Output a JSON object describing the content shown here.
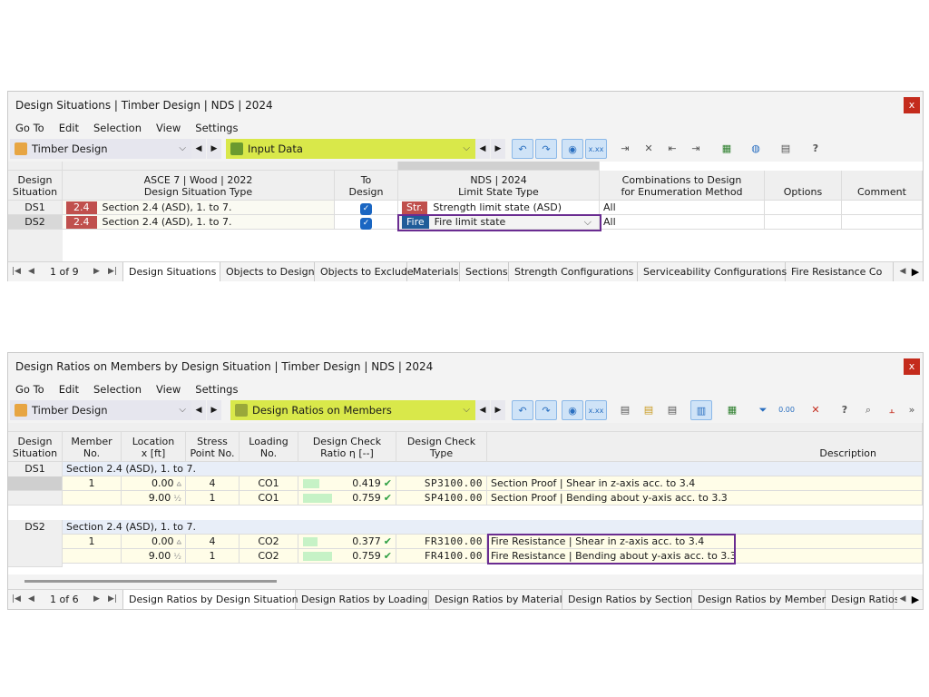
{
  "panel1": {
    "title": "Design Situations | Timber Design | NDS | 2024",
    "menu": [
      "Go To",
      "Edit",
      "Selection",
      "View",
      "Settings"
    ],
    "module": "Timber Design",
    "view": "Input Data",
    "headers": {
      "ds": "Design\nSituation",
      "type_group": "ASCE 7 | Wood | 2022",
      "type": "Design Situation Type",
      "to_design": "To\nDesign",
      "nds_group": "NDS | 2024",
      "limit": "Limit State Type",
      "combos": "Combinations to Design\nfor Enumeration Method",
      "options": "Options",
      "comment": "Comment"
    },
    "rows": [
      {
        "ds": "DS1",
        "type_badge": "2.4",
        "type": "Section 2.4 (ASD), 1. to 7.",
        "to_design": true,
        "limit_badge": "Str.",
        "limit": "Strength limit state (ASD)",
        "combos": "All"
      },
      {
        "ds": "DS2",
        "type_badge": "2.4",
        "type": "Section 2.4 (ASD), 1. to 7.",
        "to_design": true,
        "limit_badge": "Fire",
        "limit": "Fire limit state",
        "combos": "All"
      }
    ],
    "pager": "1 of 9",
    "tabs": [
      "Design Situations",
      "Objects to Design",
      "Objects to Exclude",
      "Materials",
      "Sections",
      "Strength Configurations",
      "Serviceability Configurations",
      "Fire Resistance Co"
    ]
  },
  "panel2": {
    "title": "Design Ratios on Members by Design Situation | Timber Design | NDS | 2024",
    "menu": [
      "Go To",
      "Edit",
      "Selection",
      "View",
      "Settings"
    ],
    "module": "Timber Design",
    "view": "Design Ratios on Members",
    "headers": {
      "ds": "Design\nSituation",
      "member": "Member\nNo.",
      "location": "Location\nx [ft]",
      "stress": "Stress\nPoint No.",
      "loading": "Loading\nNo.",
      "ratio": "Design Check\nRatio η [--]",
      "type": "Design Check\nType",
      "desc": "Description"
    },
    "groups": [
      {
        "ds": "DS1",
        "label": "Section 2.4 (ASD), 1. to 7.",
        "rows": [
          {
            "member": "1",
            "location": "0.00",
            "loc_icon": "max-icon",
            "stress": "4",
            "loading": "CO1",
            "ratio": 0.419,
            "ratio_text": "0.419",
            "type": "SP3100.00",
            "desc": "Section Proof | Shear in z-axis acc. to 3.4"
          },
          {
            "member": "",
            "location": "9.00",
            "loc_icon": "half-icon",
            "stress": "1",
            "loading": "CO1",
            "ratio": 0.759,
            "ratio_text": "0.759",
            "type": "SP4100.00",
            "desc": "Section Proof | Bending about y-axis acc. to 3.3"
          }
        ]
      },
      {
        "ds": "DS2",
        "label": "Section 2.4 (ASD), 1. to 7.",
        "rows": [
          {
            "member": "1",
            "location": "0.00",
            "loc_icon": "max-icon",
            "stress": "4",
            "loading": "CO2",
            "ratio": 0.377,
            "ratio_text": "0.377",
            "type": "FR3100.00",
            "desc": "Fire Resistance | Shear in z-axis acc. to 3.4"
          },
          {
            "member": "",
            "location": "9.00",
            "loc_icon": "half-icon",
            "stress": "1",
            "loading": "CO2",
            "ratio": 0.759,
            "ratio_text": "0.759",
            "type": "FR4100.00",
            "desc": "Fire Resistance | Bending about y-axis acc. to 3.3"
          }
        ]
      }
    ],
    "pager": "1 of 6",
    "tabs": [
      "Design Ratios by Design Situation",
      "Design Ratios by Loading",
      "Design Ratios by Material",
      "Design Ratios by Section",
      "Design Ratios by Member",
      "Design Ratios"
    ]
  },
  "colors": {
    "badge_red": "#c0504d",
    "badge_fire": "#1f5c99",
    "highlight": "#6a2c91",
    "view_bg": "#d9e84a",
    "row_yellow": "#fffde8",
    "group_blue": "#e8eef8"
  }
}
